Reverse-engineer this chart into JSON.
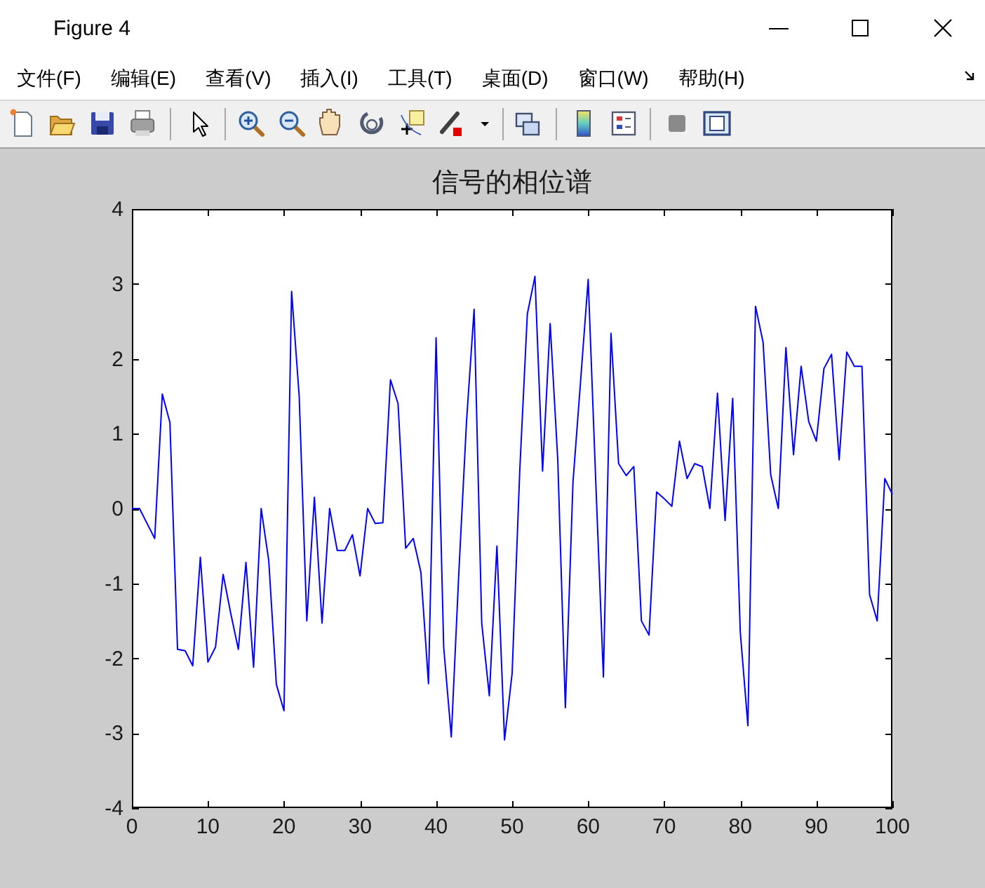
{
  "chart_data": {
    "type": "line",
    "title": "信号的相位谱",
    "annotations": [
      "Figure 4",
      "文件(F)",
      "编辑(E)",
      "查看(V)",
      "插入(I)",
      "工具(T)",
      "桌面(D)",
      "窗口(W)",
      "帮助(H)"
    ],
    "x": [
      0,
      1,
      2,
      3,
      4,
      5,
      6,
      7,
      8,
      9,
      10,
      11,
      12,
      13,
      14,
      15,
      16,
      17,
      18,
      19,
      20,
      21,
      22,
      23,
      24,
      25,
      26,
      27,
      28,
      29,
      30,
      31,
      32,
      33,
      34,
      35,
      36,
      37,
      38,
      39,
      40,
      41,
      42,
      43,
      44,
      45,
      46,
      47,
      48,
      49,
      50,
      51,
      52,
      53,
      54,
      55,
      56,
      57,
      58,
      59,
      60,
      61,
      62,
      63,
      64,
      65,
      66,
      67,
      68,
      69,
      70,
      71,
      72,
      73,
      74,
      75,
      76,
      77,
      78,
      79,
      80,
      81,
      82,
      83,
      84,
      85,
      86,
      87,
      88,
      89,
      90,
      91,
      92,
      93,
      94,
      95,
      96,
      97,
      98,
      99,
      100
    ],
    "series": [
      {
        "color": "#0000ff",
        "values": [
          0.0,
          0.0,
          -0.2,
          -0.4,
          1.53,
          1.15,
          -1.88,
          -1.9,
          -2.1,
          -0.65,
          -2.05,
          -1.85,
          -0.88,
          -1.4,
          -1.88,
          -0.72,
          -2.12,
          0.0,
          -0.7,
          -2.35,
          -2.7,
          2.9,
          1.5,
          -1.5,
          0.15,
          -1.53,
          0.0,
          -0.56,
          -0.56,
          -0.35,
          -0.9,
          0.0,
          -0.2,
          -0.19,
          1.72,
          1.4,
          -0.53,
          -0.4,
          -0.85,
          -2.34,
          2.28,
          -1.85,
          -3.05,
          -0.84,
          1.16,
          2.66,
          -1.53,
          -2.5,
          -0.5,
          -3.09,
          -2.2,
          0.5,
          2.6,
          3.1,
          0.5,
          2.47,
          0.65,
          -2.66,
          0.35,
          1.7,
          3.06,
          0.35,
          -2.25,
          2.34,
          0.6,
          0.44,
          0.56,
          -1.5,
          -1.69,
          0.22,
          0.13,
          0.03,
          0.9,
          0.4,
          0.6,
          0.56,
          0.0,
          1.54,
          -0.16,
          1.47,
          -1.65,
          -2.9,
          2.7,
          2.22,
          0.45,
          0.0,
          2.15,
          0.72,
          1.9,
          1.16,
          0.9,
          1.87,
          2.06,
          0.65,
          2.09,
          1.9,
          1.9,
          -1.15,
          -1.5,
          0.4,
          0.19
        ]
      }
    ],
    "xlim": [
      0,
      100
    ],
    "ylim": [
      -4,
      4
    ],
    "xticks": [
      0,
      10,
      20,
      30,
      40,
      50,
      60,
      70,
      80,
      90,
      100
    ],
    "yticks": [
      -4,
      -3,
      -2,
      -1,
      0,
      1,
      2,
      3,
      4
    ]
  }
}
